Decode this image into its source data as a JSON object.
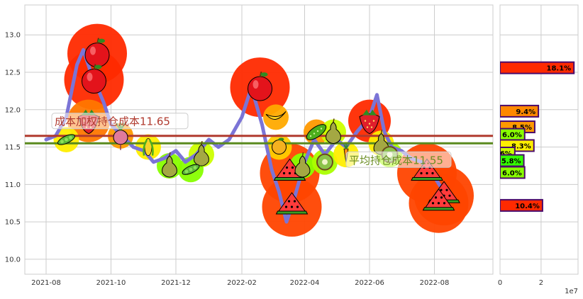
{
  "chart_data": [
    {
      "type": "line",
      "x_ticks": [
        "2021-08",
        "2021-10",
        "2021-12",
        "2022-02",
        "2022-04",
        "2022-06",
        "2022-08"
      ],
      "y_ticks": [
        "10.0",
        "10.5",
        "11.0",
        "11.5",
        "12.0",
        "12.5",
        "13.0"
      ],
      "ylim": [
        9.8,
        13.4
      ],
      "xlim": [
        "2021-07-12",
        "2022-09-25"
      ],
      "grid": true,
      "series": [
        {
          "color": "#7b74d6",
          "x": [
            "2021-08-01",
            "2021-08-10",
            "2021-08-20",
            "2021-08-30",
            "2021-09-05",
            "2021-09-12",
            "2021-09-18",
            "2021-09-24",
            "2021-10-01",
            "2021-10-08",
            "2021-10-15",
            "2021-10-22",
            "2021-11-01",
            "2021-11-10",
            "2021-11-20",
            "2021-12-01",
            "2021-12-10",
            "2021-12-20",
            "2022-01-01",
            "2022-01-10",
            "2022-01-20",
            "2022-02-01",
            "2022-02-10",
            "2022-02-20",
            "2022-03-01",
            "2022-03-08",
            "2022-03-15",
            "2022-03-22",
            "2022-04-01",
            "2022-04-10",
            "2022-04-20",
            "2022-05-01",
            "2022-05-10",
            "2022-05-20",
            "2022-06-01",
            "2022-06-08",
            "2022-06-15",
            "2022-06-22",
            "2022-07-01",
            "2022-07-10",
            "2022-07-20",
            "2022-08-01",
            "2022-08-10",
            "2022-08-20"
          ],
          "values": [
            11.6,
            11.65,
            11.9,
            12.6,
            12.8,
            12.5,
            12.3,
            12.1,
            11.8,
            11.7,
            11.6,
            11.5,
            11.45,
            11.3,
            11.35,
            11.45,
            11.3,
            11.4,
            11.6,
            11.5,
            11.6,
            11.9,
            12.3,
            11.8,
            11.2,
            10.9,
            10.5,
            10.8,
            11.3,
            11.6,
            11.4,
            11.6,
            11.5,
            11.7,
            11.9,
            12.2,
            11.7,
            11.5,
            11.45,
            11.35,
            11.3,
            11.1,
            10.9,
            10.8
          ]
        }
      ],
      "markers": [
        {
          "label": "apple-icon",
          "x": "2021-09-18",
          "y": 12.75,
          "color": "#ff2a00"
        },
        {
          "label": "apple-icon",
          "x": "2021-09-15",
          "y": 12.4,
          "color": "#ff2a00"
        },
        {
          "label": "strawberry-icon",
          "x": "2021-09-10",
          "y": 11.85,
          "color": "#ff7700"
        },
        {
          "label": "pea-pod-icon",
          "x": "2021-08-20",
          "y": 11.6,
          "color": "#ffee00"
        },
        {
          "label": "radish-icon",
          "x": "2021-10-10",
          "y": 11.65,
          "color": "#ff9900"
        },
        {
          "label": "corn-icon",
          "x": "2021-11-05",
          "y": 11.5,
          "color": "#ffee00"
        },
        {
          "label": "pear-icon",
          "x": "2021-11-25",
          "y": 11.25,
          "color": "#88ff00"
        },
        {
          "label": "pear-icon",
          "x": "2021-12-25",
          "y": 11.4,
          "color": "#ccff00"
        },
        {
          "label": "peas-icon",
          "x": "2021-12-15",
          "y": 11.2,
          "color": "#88ff00"
        },
        {
          "label": "apple-icon",
          "x": "2022-02-18",
          "y": 12.3,
          "color": "#ff2a00"
        },
        {
          "label": "banana-icon",
          "x": "2022-03-05",
          "y": 11.9,
          "color": "#ffaa00"
        },
        {
          "label": "watermelon-icon",
          "x": "2022-03-18",
          "y": 11.15,
          "color": "#ff4400"
        },
        {
          "label": "watermelon-icon",
          "x": "2022-03-20",
          "y": 10.7,
          "color": "#ff4400"
        },
        {
          "label": "pear-icon",
          "x": "2022-03-30",
          "y": 11.25,
          "color": "#88ff00"
        },
        {
          "label": "orange-icon",
          "x": "2022-03-08",
          "y": 11.5,
          "color": "#ffcc00"
        },
        {
          "label": "cucumber-icon",
          "x": "2022-04-12",
          "y": 11.7,
          "color": "#ff9900"
        },
        {
          "label": "kiwi-icon",
          "x": "2022-04-20",
          "y": 11.3,
          "color": "#aaff00"
        },
        {
          "label": "pear-icon",
          "x": "2022-04-28",
          "y": 11.7,
          "color": "#ccff00"
        },
        {
          "label": "carrot-icon",
          "x": "2022-05-10",
          "y": 11.4,
          "color": "#ffee00"
        },
        {
          "label": "strawberry-icon",
          "x": "2022-06-01",
          "y": 11.85,
          "color": "#ff2a00"
        },
        {
          "label": "pear-icon",
          "x": "2022-06-12",
          "y": 11.55,
          "color": "#ffee00"
        },
        {
          "label": "kiwi-icon",
          "x": "2022-06-20",
          "y": 11.4,
          "color": "#aaff00"
        },
        {
          "label": "watermelon-icon",
          "x": "2022-07-25",
          "y": 11.15,
          "color": "#ff4400"
        },
        {
          "label": "watermelon-icon",
          "x": "2022-08-10",
          "y": 10.85,
          "color": "#ff4400"
        },
        {
          "label": "watermelon-icon",
          "x": "2022-08-05",
          "y": 10.75,
          "color": "#ff4400"
        }
      ],
      "hlines": [
        {
          "value": 11.65,
          "color": "#b03a2e",
          "label": "成本加权持仓成本11.65",
          "label_color": "#b03a2e"
        },
        {
          "value": 11.55,
          "color": "#5a8a1e",
          "label": "平均持仓成本11.55",
          "label_color": "#6b8e23"
        }
      ]
    },
    {
      "type": "bar",
      "orientation": "horizontal",
      "x_ticks": [
        "0",
        "2"
      ],
      "x_offset_label": "1e7",
      "xlim": [
        0,
        38000000
      ],
      "ylim": [
        9.8,
        13.4
      ],
      "grid": true,
      "bars": [
        {
          "price": 12.56,
          "value": 36000000,
          "label": "18.1%",
          "color": "#ff2a00"
        },
        {
          "price": 11.98,
          "value": 18700000,
          "label": "9.4%",
          "color": "#ff8800"
        },
        {
          "price": 11.77,
          "value": 16900000,
          "label": "8.5%",
          "color": "#ff9900"
        },
        {
          "price": 11.67,
          "value": 12000000,
          "label": "6.0%",
          "color": "#88ff00"
        },
        {
          "price": 11.52,
          "value": 16500000,
          "label": "8.3%",
          "color": "#ffee00"
        },
        {
          "price": 11.42,
          "value": 7200000,
          "label": "3.6%",
          "color": "#ccff00"
        },
        {
          "price": 11.32,
          "value": 11600000,
          "label": "5.8%",
          "color": "#33ff00"
        },
        {
          "price": 11.16,
          "value": 12000000,
          "label": "6.0%",
          "color": "#88ff00"
        },
        {
          "price": 10.72,
          "value": 20700000,
          "label": "10.4%",
          "color": "#ff2a00"
        }
      ]
    }
  ]
}
